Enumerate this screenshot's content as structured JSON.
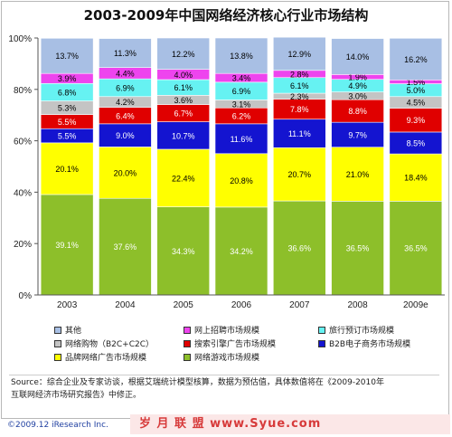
{
  "chart_data": {
    "type": "bar",
    "stacked": true,
    "title": "2003-2009年中国网络经济核心行业市场结构",
    "categories": [
      "2003",
      "2004",
      "2005",
      "2006",
      "2007",
      "2008",
      "2009e"
    ],
    "ylim": [
      0,
      100
    ],
    "yticks": [
      "0%",
      "20%",
      "40%",
      "60%",
      "80%",
      "100%"
    ],
    "grid": false,
    "legend_position": "bottom",
    "series": [
      {
        "name": "网络游戏市场规模",
        "color": "#8dbf2a",
        "label_color": "#ffffff",
        "values": [
          39.1,
          37.6,
          34.3,
          34.2,
          36.6,
          36.5,
          36.5
        ]
      },
      {
        "name": "品牌网络广告市场规模",
        "color": "#ffff00",
        "label_color": "#000000",
        "values": [
          20.1,
          20.0,
          22.4,
          20.8,
          20.7,
          21.0,
          18.4
        ]
      },
      {
        "name": "B2B电子商务市场规模",
        "color": "#1414d0",
        "label_color": "#ffffff",
        "values": [
          5.5,
          9.0,
          10.7,
          11.6,
          11.1,
          9.7,
          8.5
        ]
      },
      {
        "name": "搜索引擎广告市场规模",
        "color": "#e00000",
        "label_color": "#ffffff",
        "values": [
          5.5,
          6.4,
          6.7,
          6.2,
          7.8,
          8.8,
          9.3
        ]
      },
      {
        "name": "网络购物（B2C+C2C）",
        "color": "#c4c4c4",
        "label_color": "#000000",
        "values": [
          5.3,
          4.2,
          3.6,
          3.1,
          2.3,
          3.0,
          4.5
        ]
      },
      {
        "name": "旅行预订市场规模",
        "color": "#66f2f2",
        "label_color": "#000000",
        "values": [
          6.8,
          6.9,
          6.1,
          6.9,
          6.1,
          4.9,
          5.0
        ]
      },
      {
        "name": "网上招聘市场规模",
        "color": "#ee44ee",
        "label_color": "#000000",
        "values": [
          3.9,
          4.4,
          4.0,
          3.4,
          2.8,
          1.9,
          1.5
        ]
      },
      {
        "name": "其他",
        "color": "#a8bfe4",
        "label_color": "#000000",
        "values": [
          13.7,
          11.3,
          12.2,
          13.8,
          12.9,
          14.0,
          16.2
        ]
      }
    ]
  },
  "legend_rows": [
    [
      "其他",
      "网上招聘市场规模",
      "旅行预订市场规模"
    ],
    [
      "网络购物（B2C+C2C）",
      "搜索引擎广告市场规模",
      "B2B电子商务市场规模"
    ],
    [
      "品牌网络广告市场规模",
      "网络游戏市场规模"
    ]
  ],
  "source": {
    "line1": "Source：综合企业及专家访谈，根据艾瑞统计模型核算，数据为预估值，具体数值将在《2009-2010年",
    "line2": "互联网经济市场研究报告》中修正。"
  },
  "copyright": "©2009.12 iResearch Inc.",
  "watermark": "岁 月 联 盟    www.Syue.com"
}
